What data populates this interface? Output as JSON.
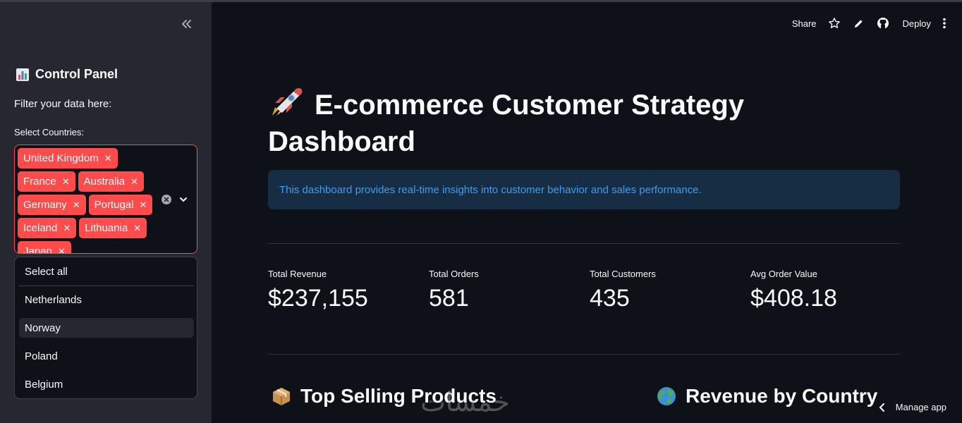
{
  "sidebar": {
    "header": "Control Panel",
    "subtitle": "Filter your data here:",
    "countries_label": "Select Countries:",
    "selected_countries": [
      "United Kingdom",
      "France",
      "Australia",
      "Germany",
      "Portugal",
      "Iceland",
      "Lithuania",
      "Japan"
    ],
    "dropdown_options": [
      "Select all",
      "Netherlands",
      "Norway",
      "Poland",
      "Belgium"
    ],
    "highlighted_option": "Norway"
  },
  "toolbar": {
    "share": "Share",
    "deploy": "Deploy"
  },
  "main": {
    "title_line1": "E-commerce Customer Strategy",
    "title_line2": "Dashboard",
    "info": "This dashboard provides real-time insights into customer behavior and sales performance.",
    "metrics": [
      {
        "label": "Total Revenue",
        "value": "$237,155"
      },
      {
        "label": "Total Orders",
        "value": "581"
      },
      {
        "label": "Total Customers",
        "value": "435"
      },
      {
        "label": "Avg Order Value",
        "value": "$408.18"
      }
    ],
    "sections": {
      "top_products": "Top Selling Products",
      "revenue_by_country": "Revenue by Country"
    }
  },
  "footer": {
    "manage_app": "Manage app"
  },
  "watermark": "خمسات",
  "colors": {
    "background": "#0e1117",
    "sidebar": "#262730",
    "accent": "#ff4b4b",
    "info_bg": "#172d43",
    "info_text": "#3d9df3"
  }
}
